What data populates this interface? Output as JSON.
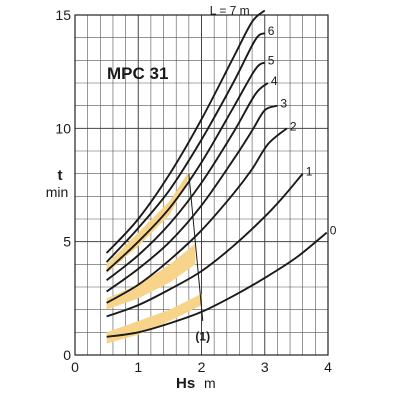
{
  "chart_data": {
    "type": "line",
    "title": "MPC 31",
    "xlabel": "Hs",
    "xunit": "m",
    "ylabel": "t",
    "yunit": "min",
    "xlim": [
      0,
      4
    ],
    "ylim": [
      0,
      15
    ],
    "x_ticks": [
      "0",
      "1",
      "2",
      "3",
      "4"
    ],
    "y_ticks": [
      "0",
      "5",
      "10",
      "15"
    ],
    "grid": true,
    "series": [
      {
        "name": "0",
        "points": [
          [
            0.5,
            0.8
          ],
          [
            1.0,
            1.0
          ],
          [
            1.5,
            1.4
          ],
          [
            2.0,
            1.9
          ],
          [
            2.5,
            2.6
          ],
          [
            3.0,
            3.4
          ],
          [
            3.5,
            4.3
          ],
          [
            3.98,
            5.4
          ]
        ]
      },
      {
        "name": "1",
        "points": [
          [
            0.5,
            1.7
          ],
          [
            1.0,
            2.2
          ],
          [
            1.5,
            2.9
          ],
          [
            2.0,
            3.7
          ],
          [
            2.5,
            4.8
          ],
          [
            3.0,
            6.1
          ],
          [
            3.3,
            7.0
          ],
          [
            3.6,
            8.0
          ]
        ]
      },
      {
        "name": "2",
        "points": [
          [
            0.5,
            2.3
          ],
          [
            1.0,
            3.1
          ],
          [
            1.5,
            4.2
          ],
          [
            2.0,
            5.5
          ],
          [
            2.5,
            7.1
          ],
          [
            2.8,
            8.2
          ],
          [
            3.05,
            9.3
          ],
          [
            3.35,
            10.0
          ]
        ]
      },
      {
        "name": "3",
        "points": [
          [
            0.5,
            2.8
          ],
          [
            1.0,
            3.8
          ],
          [
            1.5,
            5.0
          ],
          [
            2.0,
            6.6
          ],
          [
            2.5,
            8.6
          ],
          [
            2.8,
            9.9
          ],
          [
            3.0,
            10.8
          ],
          [
            3.2,
            11.0
          ]
        ]
      },
      {
        "name": "4",
        "points": [
          [
            0.5,
            3.3
          ],
          [
            1.0,
            4.4
          ],
          [
            1.5,
            5.8
          ],
          [
            2.0,
            7.6
          ],
          [
            2.5,
            9.8
          ],
          [
            2.85,
            11.5
          ],
          [
            3.05,
            12.0
          ]
        ]
      },
      {
        "name": "5",
        "points": [
          [
            0.5,
            3.7
          ],
          [
            1.0,
            5.0
          ],
          [
            1.5,
            6.5
          ],
          [
            2.0,
            8.5
          ],
          [
            2.5,
            10.9
          ],
          [
            2.85,
            12.6
          ],
          [
            3.0,
            12.9
          ]
        ]
      },
      {
        "name": "6",
        "points": [
          [
            0.5,
            4.1
          ],
          [
            1.0,
            5.6
          ],
          [
            1.5,
            7.3
          ],
          [
            2.0,
            9.5
          ],
          [
            2.5,
            12.0
          ],
          [
            2.85,
            13.9
          ],
          [
            3.0,
            14.2
          ]
        ]
      },
      {
        "name": "L = 7 m",
        "points": [
          [
            0.5,
            4.5
          ],
          [
            1.0,
            6.0
          ],
          [
            1.5,
            8.0
          ],
          [
            2.0,
            10.4
          ],
          [
            2.5,
            13.1
          ],
          [
            2.8,
            14.7
          ],
          [
            3.0,
            15.2
          ]
        ]
      }
    ],
    "shaded_regions": [
      {
        "points": [
          [
            0.5,
            0.5
          ],
          [
            1.0,
            0.9
          ],
          [
            1.5,
            1.5
          ],
          [
            2.0,
            2.2
          ],
          [
            2.0,
            2.7
          ],
          [
            1.5,
            2.0
          ],
          [
            1.0,
            1.5
          ],
          [
            0.5,
            1.0
          ]
        ]
      },
      {
        "points": [
          [
            0.5,
            2.0
          ],
          [
            1.0,
            2.5
          ],
          [
            1.5,
            3.2
          ],
          [
            1.9,
            4.0
          ],
          [
            1.9,
            4.9
          ],
          [
            1.5,
            4.0
          ],
          [
            1.0,
            3.1
          ],
          [
            0.5,
            2.5
          ]
        ]
      },
      {
        "points": [
          [
            0.5,
            3.6
          ],
          [
            1.0,
            4.8
          ],
          [
            1.5,
            6.2
          ],
          [
            1.8,
            7.8
          ],
          [
            1.8,
            8.1
          ],
          [
            1.5,
            6.8
          ],
          [
            1.0,
            5.4
          ],
          [
            0.5,
            4.0
          ]
        ]
      }
    ],
    "marker_line": [
      [
        1.8,
        8.0
      ],
      [
        2.02,
        1.5
      ]
    ],
    "marker_label": "(1)",
    "marker_label_at": [
      2.02,
      0.85
    ],
    "color": "#1a1a1a",
    "shade_color": "#f7d48a"
  }
}
